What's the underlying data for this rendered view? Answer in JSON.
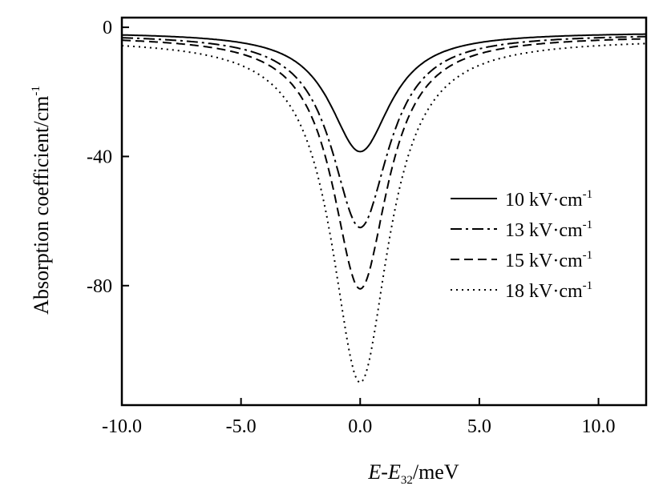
{
  "chart_data": {
    "type": "line",
    "xlabel": {
      "var1": "E",
      "dash": "-",
      "var2": "E",
      "sub": "32",
      "unit": "/meV"
    },
    "ylabel": {
      "main": "Absorption coefficient/cm",
      "sup": "-1"
    },
    "xlim": [
      -10.0,
      12.0
    ],
    "ylim": [
      -117,
      3
    ],
    "xticks": [
      -10.0,
      -5.0,
      0.0,
      5.0,
      10.0
    ],
    "xtick_labels": [
      "-10.0",
      "-5.0",
      "0.0",
      "5.0",
      "10.0"
    ],
    "yticks": [
      0,
      -40,
      -80
    ],
    "ytick_labels": [
      "0",
      "-40",
      "-80"
    ],
    "grid": false,
    "legend_position": "center-right",
    "series": [
      {
        "name": "10 kV·cm",
        "name_sup": "-1",
        "style": "solid",
        "peak": -38.5,
        "baseline": -1.5,
        "gamma": 1.55
      },
      {
        "name": "13 kV·cm",
        "name_sup": "-1",
        "style": "dashdot",
        "peak": -62,
        "baseline": -2,
        "gamma": 1.45
      },
      {
        "name": "15 kV·cm",
        "name_sup": "-1",
        "style": "dashed",
        "peak": -81,
        "baseline": -2.5,
        "gamma": 1.4
      },
      {
        "name": "18 kV·cm",
        "name_sup": "-1",
        "style": "dotted",
        "peak": -110,
        "baseline": -3.5,
        "gamma": 1.45
      }
    ]
  }
}
